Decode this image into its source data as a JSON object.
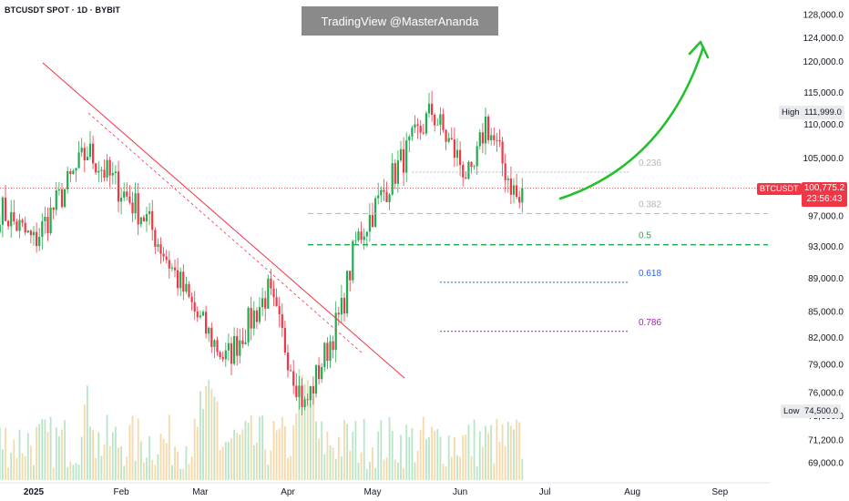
{
  "header": {
    "symbol_title": "BTCUSDT SPOT · 1D · BYBIT",
    "watermark": "TradingView @MasterAnanda"
  },
  "current_price": {
    "symbol": "BTCUSDT",
    "price": "100,775.2",
    "countdown": "23:56:43",
    "color": "#f23645"
  },
  "high_tag": {
    "label": "High",
    "value": "111,999.0"
  },
  "low_tag": {
    "label": "Low",
    "value": "74,500.0"
  },
  "colors": {
    "up": "#089981",
    "up_bright": "#22ab4f",
    "down": "#f23645",
    "vol_up": "#b9e5c7",
    "vol_down": "#f7d8a8",
    "trendline": "#f23645",
    "arrow": "#22c02d"
  },
  "chart_data": {
    "type": "candlestick",
    "y_axis": {
      "scale": "log",
      "ylim": [
        66500,
        131000
      ],
      "tick_labels": [
        "128,000.0",
        "124,000.0",
        "120,000.0",
        "115,000.0",
        "110,000.0",
        "105,000.0",
        "97,000.0",
        "93,000.0",
        "89,000.0",
        "85,000.0",
        "82,000.0",
        "79,000.0",
        "76,000.0",
        "73,600.0",
        "71,200.0",
        "69,000.0"
      ],
      "tick_values": [
        128000,
        124000,
        120000,
        115000,
        110000,
        105000,
        97000,
        93000,
        89000,
        85000,
        82000,
        79000,
        76000,
        73600,
        71200,
        69000
      ]
    },
    "x_axis": {
      "tick_labels": [
        "2025",
        "Feb",
        "Mar",
        "Apr",
        "May",
        "Jun",
        "Jul",
        "Aug",
        "Sep"
      ],
      "tick_dates": [
        "2025-01-01",
        "2025-02-01",
        "2025-03-01",
        "2025-04-01",
        "2025-05-01",
        "2025-06-01",
        "2025-07-01",
        "2025-08-01",
        "2025-09-01"
      ]
    },
    "fibonacci_levels": [
      {
        "label": "0.236",
        "price": 103000,
        "color": "#b2b5be"
      },
      {
        "label": "0.382",
        "price": 97300,
        "color": "#b2b5be"
      },
      {
        "label": "0.5",
        "price": 93200,
        "color": "#22ab4f"
      },
      {
        "label": "0.618",
        "price": 88500,
        "color": "#2962ff"
      },
      {
        "label": "0.786",
        "price": 82700,
        "color": "#9c27b0"
      }
    ],
    "key_points": [
      {
        "date": "2024-12-20",
        "price": 98000
      },
      {
        "date": "2025-01-01",
        "price": 93500
      },
      {
        "date": "2025-01-20",
        "price": 106000
      },
      {
        "date": "2025-02-10",
        "price": 96500
      },
      {
        "date": "2025-02-28",
        "price": 84300
      },
      {
        "date": "2025-03-10",
        "price": 79500
      },
      {
        "date": "2025-03-25",
        "price": 87300
      },
      {
        "date": "2025-04-07",
        "price": 74500
      },
      {
        "date": "2025-04-20",
        "price": 85000
      },
      {
        "date": "2025-04-25",
        "price": 93500
      },
      {
        "date": "2025-05-10",
        "price": 103800
      },
      {
        "date": "2025-05-22",
        "price": 111999
      },
      {
        "date": "2025-06-05",
        "price": 101500
      },
      {
        "date": "2025-06-10",
        "price": 110500
      },
      {
        "date": "2025-06-22",
        "price": 98500
      },
      {
        "date": "2025-06-23",
        "price": 100775.2
      }
    ]
  }
}
